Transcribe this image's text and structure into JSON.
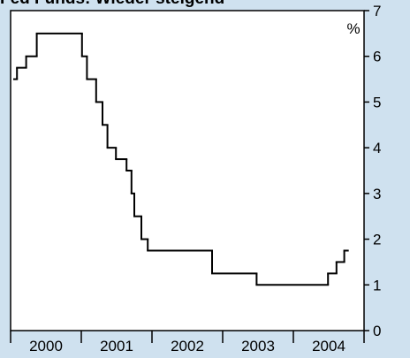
{
  "chart_data": {
    "type": "line",
    "title": "Fed Funds: Wieder steigend",
    "y_unit": "%",
    "categories": [
      "2000",
      "2001",
      "2002",
      "2003",
      "2004"
    ],
    "xlim": [
      2000,
      2005
    ],
    "ylim": [
      0,
      7
    ],
    "yticks": [
      0,
      1,
      2,
      3,
      4,
      5,
      6,
      7
    ],
    "step": true,
    "series": [
      {
        "name": "Fed Funds",
        "color": "#000000",
        "x": [
          2000.05,
          2000.09,
          2000.22,
          2000.37,
          2001.01,
          2001.08,
          2001.21,
          2001.3,
          2001.37,
          2001.49,
          2001.64,
          2001.71,
          2001.75,
          2001.85,
          2001.94,
          2002.85,
          2003.48,
          2004.49,
          2004.61,
          2004.72,
          2004.77
        ],
        "values": [
          5.5,
          5.75,
          6.0,
          6.5,
          6.0,
          5.5,
          5.0,
          4.5,
          4.0,
          3.75,
          3.5,
          3.0,
          2.5,
          2.0,
          1.75,
          1.25,
          1.0,
          1.25,
          1.5,
          1.75,
          1.75
        ]
      }
    ]
  }
}
